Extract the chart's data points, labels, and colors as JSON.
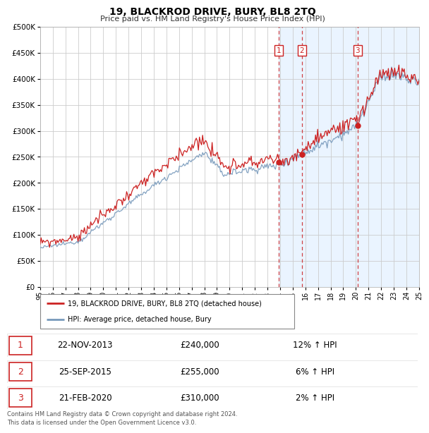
{
  "title": "19, BLACKROD DRIVE, BURY, BL8 2TQ",
  "subtitle": "Price paid vs. HM Land Registry's House Price Index (HPI)",
  "legend_line1": "19, BLACKROD DRIVE, BURY, BL8 2TQ (detached house)",
  "legend_line2": "HPI: Average price, detached house, Bury",
  "transactions": [
    {
      "num": 1,
      "date": "22-NOV-2013",
      "year": 2013.9,
      "price": 240000,
      "hpi_pct": "12%",
      "direction": "↑"
    },
    {
      "num": 2,
      "date": "25-SEP-2015",
      "year": 2015.73,
      "price": 255000,
      "hpi_pct": "6%",
      "direction": "↑"
    },
    {
      "num": 3,
      "date": "21-FEB-2020",
      "year": 2020.13,
      "price": 310000,
      "hpi_pct": "2%",
      "direction": "↑"
    }
  ],
  "footer": "Contains HM Land Registry data © Crown copyright and database right 2024.\nThis data is licensed under the Open Government Licence v3.0.",
  "red_color": "#cc2222",
  "blue_color": "#7799bb",
  "background_shaded": "#ddeeff",
  "shaded_start": 2013.9,
  "ylim": [
    0,
    500000
  ],
  "xlim_start": 1995,
  "xlim_end": 2025,
  "grid_color": "#cccccc"
}
